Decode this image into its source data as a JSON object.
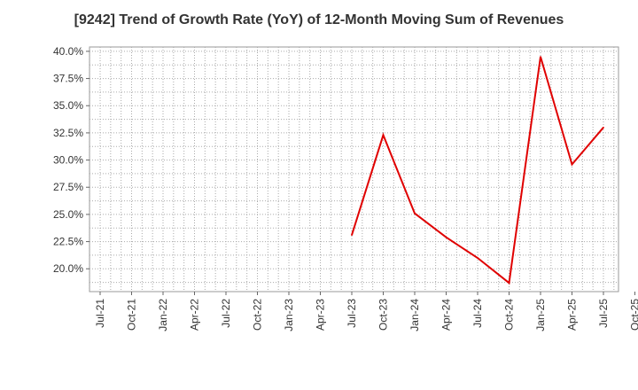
{
  "chart_data": {
    "type": "line",
    "title": "[9242]  Trend of Growth Rate (YoY) of 12-Month Moving Sum of Revenues",
    "xlabel": "",
    "ylabel": "",
    "ylim": [
      17.9,
      40.4
    ],
    "y_ticks": [
      20.0,
      22.5,
      25.0,
      27.5,
      30.0,
      32.5,
      35.0,
      37.5,
      40.0
    ],
    "y_tick_labels": [
      "20.0%",
      "22.5%",
      "25.0%",
      "27.5%",
      "30.0%",
      "32.5%",
      "35.0%",
      "37.5%",
      "40.0%"
    ],
    "categories": [
      "Jul-21",
      "Oct-21",
      "Jan-22",
      "Apr-22",
      "Jul-22",
      "Oct-22",
      "Jan-23",
      "Apr-23",
      "Jul-23",
      "Oct-23",
      "Jan-24",
      "Apr-24",
      "Jul-24",
      "Oct-24",
      "Jan-25",
      "Apr-25",
      "Jul-25",
      "Oct-25"
    ],
    "series": [
      {
        "name": "Growth Rate (YoY)",
        "color": "#e00000",
        "values": [
          null,
          null,
          null,
          null,
          null,
          null,
          null,
          null,
          23.1,
          32.3,
          25.1,
          22.9,
          21.0,
          18.7,
          39.5,
          29.6,
          33.0,
          null
        ]
      }
    ],
    "grid": true,
    "legend": "none"
  }
}
